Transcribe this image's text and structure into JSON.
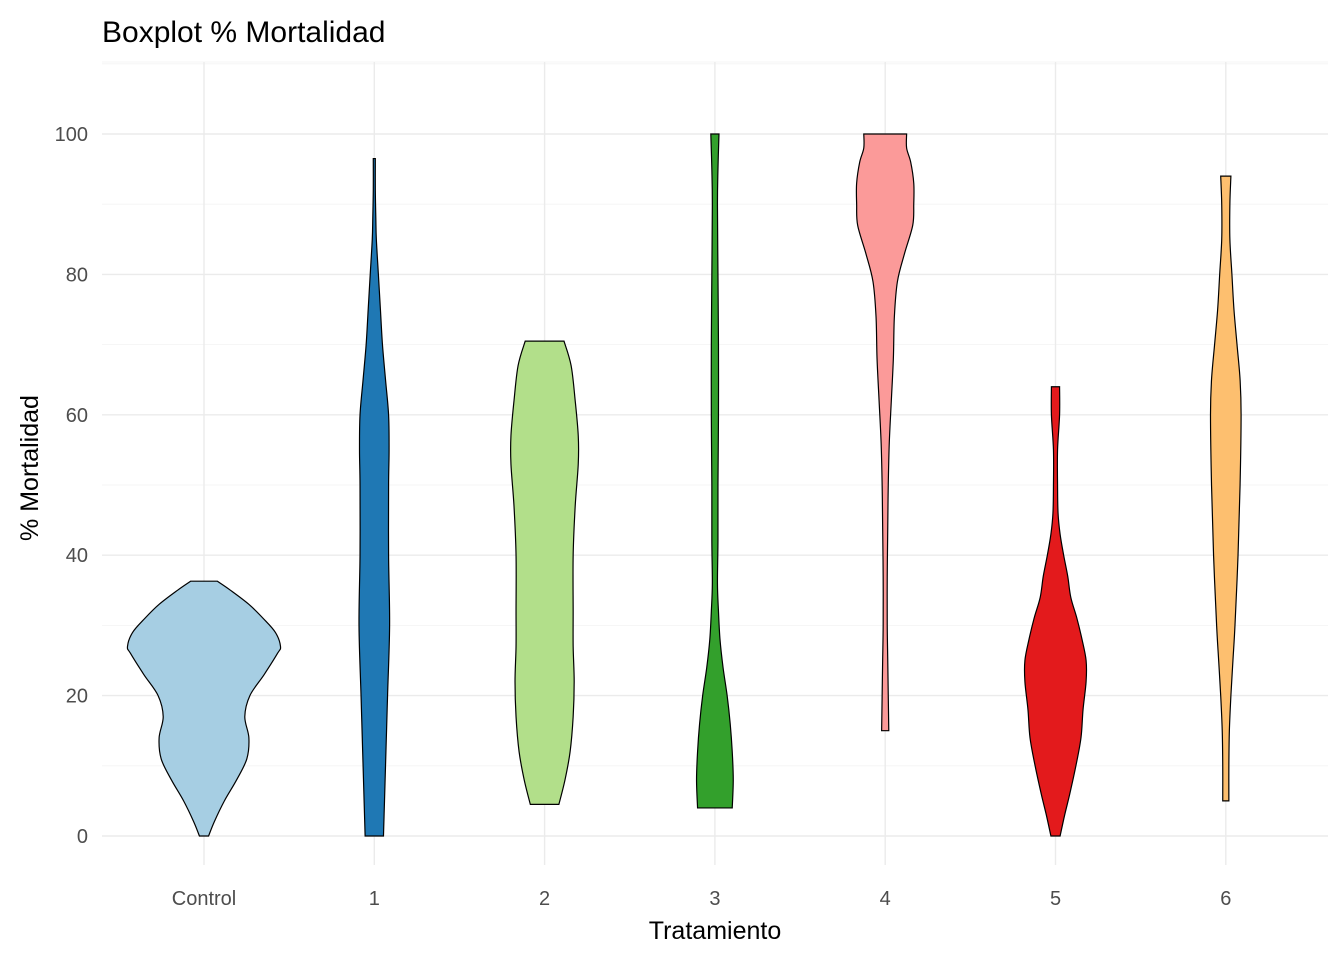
{
  "chart_data": {
    "type": "violin",
    "title": "Boxplot % Mortalidad",
    "xlabel": "Tratamiento",
    "ylabel": "% Mortalidad",
    "ylim": [
      -4,
      110
    ],
    "yticks": [
      0,
      20,
      40,
      60,
      80,
      100
    ],
    "grid": true,
    "legend": "none",
    "categories": [
      "Control",
      "1",
      "2",
      "3",
      "4",
      "5",
      "6"
    ],
    "series": [
      {
        "category": "Control",
        "color": "#A6CEE3",
        "min": 0,
        "max": 36.3,
        "profile": [
          [
            0,
            0.045
          ],
          [
            2,
            0.1
          ],
          [
            5,
            0.2
          ],
          [
            8,
            0.32
          ],
          [
            11,
            0.42
          ],
          [
            14,
            0.44
          ],
          [
            17,
            0.4
          ],
          [
            20,
            0.45
          ],
          [
            23,
            0.59
          ],
          [
            26,
            0.72
          ],
          [
            27,
            0.75
          ],
          [
            29,
            0.7
          ],
          [
            31,
            0.58
          ],
          [
            33,
            0.44
          ],
          [
            35,
            0.26
          ],
          [
            36.3,
            0.13
          ]
        ]
      },
      {
        "category": "1",
        "color": "#1F78B4",
        "min": 0,
        "max": 96.5,
        "profile": [
          [
            0,
            0.09
          ],
          [
            5,
            0.1
          ],
          [
            10,
            0.11
          ],
          [
            20,
            0.13
          ],
          [
            30,
            0.15
          ],
          [
            40,
            0.14
          ],
          [
            50,
            0.14
          ],
          [
            55,
            0.145
          ],
          [
            60,
            0.14
          ],
          [
            65,
            0.11
          ],
          [
            70,
            0.08
          ],
          [
            75,
            0.06
          ],
          [
            80,
            0.04
          ],
          [
            85,
            0.02
          ],
          [
            88,
            0.015
          ],
          [
            92,
            0.01
          ],
          [
            96.5,
            0.01
          ]
        ]
      },
      {
        "category": "2",
        "color": "#B2DF8A",
        "min": 4.5,
        "max": 70.5,
        "profile": [
          [
            4.5,
            0.14
          ],
          [
            8,
            0.2
          ],
          [
            12,
            0.25
          ],
          [
            17,
            0.28
          ],
          [
            22,
            0.29
          ],
          [
            27,
            0.28
          ],
          [
            32,
            0.28
          ],
          [
            40,
            0.28
          ],
          [
            47,
            0.3
          ],
          [
            53,
            0.33
          ],
          [
            57,
            0.33
          ],
          [
            62,
            0.3
          ],
          [
            67,
            0.26
          ],
          [
            70.5,
            0.19
          ]
        ]
      },
      {
        "category": "3",
        "color": "#33A02C",
        "min": 4,
        "max": 100,
        "profile": [
          [
            4,
            0.17
          ],
          [
            8,
            0.18
          ],
          [
            12,
            0.17
          ],
          [
            16,
            0.15
          ],
          [
            20,
            0.12
          ],
          [
            24,
            0.08
          ],
          [
            28,
            0.05
          ],
          [
            32,
            0.035
          ],
          [
            36,
            0.025
          ],
          [
            42,
            0.03
          ],
          [
            50,
            0.03
          ],
          [
            60,
            0.035
          ],
          [
            70,
            0.035
          ],
          [
            80,
            0.03
          ],
          [
            90,
            0.025
          ],
          [
            95,
            0.03
          ],
          [
            100,
            0.04
          ]
        ]
      },
      {
        "category": "4",
        "color": "#FB9A99",
        "min": 15,
        "max": 100,
        "profile": [
          [
            15,
            0.035
          ],
          [
            20,
            0.03
          ],
          [
            25,
            0.025
          ],
          [
            30,
            0.02
          ],
          [
            37,
            0.02
          ],
          [
            44,
            0.025
          ],
          [
            50,
            0.03
          ],
          [
            56,
            0.04
          ],
          [
            62,
            0.06
          ],
          [
            68,
            0.08
          ],
          [
            74,
            0.09
          ],
          [
            79,
            0.12
          ],
          [
            83,
            0.19
          ],
          [
            87,
            0.27
          ],
          [
            90,
            0.28
          ],
          [
            93,
            0.28
          ],
          [
            96,
            0.25
          ],
          [
            98,
            0.21
          ],
          [
            100,
            0.21
          ]
        ]
      },
      {
        "category": "5",
        "color": "#E31A1C",
        "min": 0,
        "max": 64,
        "profile": [
          [
            0,
            0.045
          ],
          [
            3,
            0.09
          ],
          [
            6,
            0.14
          ],
          [
            10,
            0.2
          ],
          [
            14,
            0.25
          ],
          [
            18,
            0.27
          ],
          [
            22,
            0.3
          ],
          [
            25,
            0.3
          ],
          [
            28,
            0.26
          ],
          [
            31,
            0.21
          ],
          [
            34,
            0.15
          ],
          [
            37,
            0.12
          ],
          [
            40,
            0.08
          ],
          [
            43,
            0.045
          ],
          [
            46,
            0.025
          ],
          [
            50,
            0.02
          ],
          [
            55,
            0.02
          ],
          [
            60,
            0.04
          ],
          [
            64,
            0.04
          ]
        ]
      },
      {
        "category": "6",
        "color": "#FDBF6F",
        "min": 5,
        "max": 94,
        "profile": [
          [
            5,
            0.03
          ],
          [
            10,
            0.03
          ],
          [
            15,
            0.035
          ],
          [
            20,
            0.05
          ],
          [
            25,
            0.07
          ],
          [
            30,
            0.09
          ],
          [
            40,
            0.12
          ],
          [
            50,
            0.14
          ],
          [
            60,
            0.15
          ],
          [
            65,
            0.14
          ],
          [
            70,
            0.11
          ],
          [
            75,
            0.08
          ],
          [
            80,
            0.06
          ],
          [
            85,
            0.04
          ],
          [
            90,
            0.04
          ],
          [
            94,
            0.05
          ]
        ]
      }
    ]
  }
}
